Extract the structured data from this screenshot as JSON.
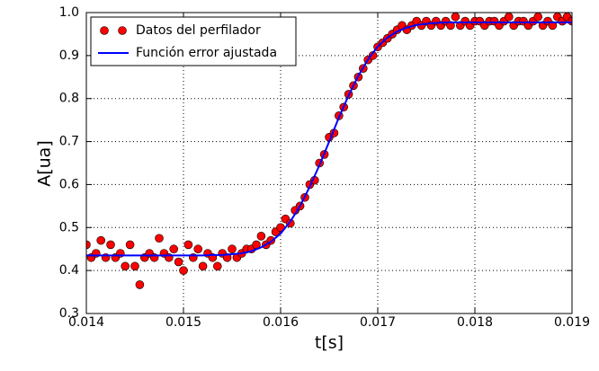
{
  "chart_data": {
    "type": "scatter",
    "xlabel": "t[s]",
    "ylabel": "A[ua]",
    "xlim": [
      0.014,
      0.019
    ],
    "xticks": [
      0.014,
      0.015,
      0.016,
      0.017,
      0.018,
      0.019
    ],
    "ylim": [
      0.3,
      1.0
    ],
    "yticks": [
      0.3,
      0.4,
      0.5,
      0.6,
      0.7,
      0.8,
      0.9,
      {
        "value": 1.0,
        "label": "1.0"
      }
    ],
    "grid": true,
    "legend": "upper left",
    "series": [
      {
        "name": "Datos del perfilador",
        "style": "markers",
        "color": "#ff0000",
        "x": [
          0.014,
          0.01405,
          0.0141,
          0.01415,
          0.0142,
          0.01425,
          0.0143,
          0.01435,
          0.0144,
          0.01445,
          0.0145,
          0.01455,
          0.0146,
          0.01465,
          0.0147,
          0.01475,
          0.0148,
          0.01485,
          0.0149,
          0.01495,
          0.015,
          0.01505,
          0.0151,
          0.01515,
          0.0152,
          0.01525,
          0.0153,
          0.01535,
          0.0154,
          0.01545,
          0.0155,
          0.01555,
          0.0156,
          0.01565,
          0.0157,
          0.01575,
          0.0158,
          0.01585,
          0.0159,
          0.01595,
          0.016,
          0.01605,
          0.0161,
          0.01615,
          0.0162,
          0.01625,
          0.0163,
          0.01635,
          0.0164,
          0.01645,
          0.0165,
          0.01655,
          0.0166,
          0.01665,
          0.0167,
          0.01675,
          0.0168,
          0.01685,
          0.0169,
          0.01695,
          0.017,
          0.01705,
          0.0171,
          0.01715,
          0.0172,
          0.01725,
          0.0173,
          0.01735,
          0.0174,
          0.01745,
          0.0175,
          0.01755,
          0.0176,
          0.01765,
          0.0177,
          0.01775,
          0.0178,
          0.01785,
          0.0179,
          0.01795,
          0.018,
          0.01805,
          0.0181,
          0.01815,
          0.0182,
          0.01825,
          0.0183,
          0.01835,
          0.0184,
          0.01845,
          0.0185,
          0.01855,
          0.0186,
          0.01865,
          0.0187,
          0.01875,
          0.0188,
          0.01885,
          0.0189,
          0.01895,
          0.019
        ],
        "values": [
          0.46,
          0.43,
          0.44,
          0.47,
          0.43,
          0.46,
          0.43,
          0.44,
          0.41,
          0.46,
          0.41,
          0.367,
          0.43,
          0.44,
          0.43,
          0.475,
          0.44,
          0.43,
          0.45,
          0.42,
          0.4,
          0.46,
          0.43,
          0.45,
          0.41,
          0.44,
          0.43,
          0.41,
          0.44,
          0.43,
          0.45,
          0.43,
          0.44,
          0.45,
          0.45,
          0.46,
          0.48,
          0.46,
          0.47,
          0.49,
          0.5,
          0.52,
          0.51,
          0.54,
          0.55,
          0.57,
          0.6,
          0.61,
          0.65,
          0.67,
          0.71,
          0.72,
          0.76,
          0.78,
          0.81,
          0.83,
          0.85,
          0.87,
          0.89,
          0.9,
          0.92,
          0.93,
          0.94,
          0.95,
          0.96,
          0.97,
          0.96,
          0.97,
          0.98,
          0.97,
          0.98,
          0.97,
          0.98,
          0.97,
          0.98,
          0.97,
          0.99,
          0.97,
          0.98,
          0.97,
          0.98,
          0.98,
          0.97,
          0.98,
          0.98,
          0.97,
          0.98,
          0.99,
          0.97,
          0.98,
          0.98,
          0.97,
          0.98,
          0.99,
          0.97,
          0.98,
          0.97,
          0.99,
          0.98,
          0.99,
          0.98
        ]
      },
      {
        "name": "Función error ajustada",
        "style": "line",
        "color": "#0000ff",
        "x": [
          0.014,
          0.0141,
          0.0142,
          0.0143,
          0.0144,
          0.0145,
          0.0146,
          0.0147,
          0.0148,
          0.0149,
          0.015,
          0.0151,
          0.0152,
          0.0153,
          0.0154,
          0.0155,
          0.0156,
          0.0157,
          0.0158,
          0.0159,
          0.016,
          0.0161,
          0.0162,
          0.0163,
          0.0164,
          0.0165,
          0.0166,
          0.0167,
          0.0168,
          0.0169,
          0.017,
          0.0171,
          0.0172,
          0.0173,
          0.0174,
          0.0175,
          0.0176,
          0.0177,
          0.0178,
          0.0179,
          0.018,
          0.0181,
          0.0182,
          0.0183,
          0.0184,
          0.0185,
          0.0186,
          0.0187,
          0.0188,
          0.0189,
          0.019
        ],
        "values": [
          0.435,
          0.435,
          0.435,
          0.435,
          0.435,
          0.435,
          0.435,
          0.435,
          0.435,
          0.435,
          0.435,
          0.435,
          0.435,
          0.436,
          0.436,
          0.438,
          0.44,
          0.445,
          0.454,
          0.467,
          0.486,
          0.514,
          0.55,
          0.595,
          0.645,
          0.7,
          0.756,
          0.807,
          0.853,
          0.891,
          0.921,
          0.942,
          0.956,
          0.965,
          0.971,
          0.974,
          0.976,
          0.977,
          0.977,
          0.977,
          0.977,
          0.977,
          0.977,
          0.977,
          0.977,
          0.977,
          0.977,
          0.977,
          0.977,
          0.977,
          0.977
        ]
      }
    ]
  }
}
